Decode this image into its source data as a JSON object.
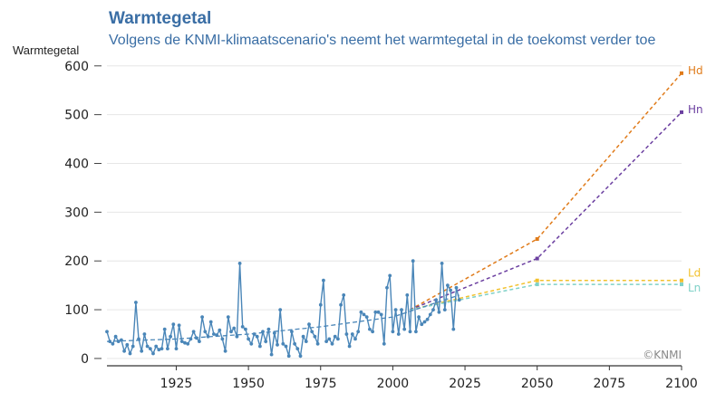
{
  "title": "Warmtegetal",
  "subtitle": "Volgens de KNMI-klimaatscenario's neemt het warmtegetal in de toekomst verder toe",
  "credit": "©KNMI",
  "chart_data": {
    "type": "line",
    "ylabel": "Warmtegetal",
    "xlim": [
      1901,
      2100
    ],
    "ylim": [
      -15,
      620
    ],
    "x_ticks": [
      1925,
      1950,
      1975,
      2000,
      2025,
      2050,
      2075,
      2100
    ],
    "y_ticks": [
      0,
      100,
      200,
      300,
      400,
      500,
      600
    ],
    "grid": "horizontal",
    "observations": {
      "color": "#4a86b8",
      "x": [
        1901,
        1902,
        1903,
        1904,
        1905,
        1906,
        1907,
        1908,
        1909,
        1910,
        1911,
        1912,
        1913,
        1914,
        1915,
        1916,
        1917,
        1918,
        1919,
        1920,
        1921,
        1922,
        1923,
        1924,
        1925,
        1926,
        1927,
        1928,
        1929,
        1930,
        1931,
        1932,
        1933,
        1934,
        1935,
        1936,
        1937,
        1938,
        1939,
        1940,
        1941,
        1942,
        1943,
        1944,
        1945,
        1946,
        1947,
        1948,
        1949,
        1950,
        1951,
        1952,
        1953,
        1954,
        1955,
        1956,
        1957,
        1958,
        1959,
        1960,
        1961,
        1962,
        1963,
        1964,
        1965,
        1966,
        1967,
        1968,
        1969,
        1970,
        1971,
        1972,
        1973,
        1974,
        1975,
        1976,
        1977,
        1978,
        1979,
        1980,
        1981,
        1982,
        1983,
        1984,
        1985,
        1986,
        1987,
        1988,
        1989,
        1990,
        1991,
        1992,
        1993,
        1994,
        1995,
        1996,
        1997,
        1998,
        1999,
        2000,
        2001,
        2002,
        2003,
        2004,
        2005,
        2006,
        2007,
        2008,
        2009,
        2010,
        2011,
        2012,
        2013,
        2014,
        2015,
        2016,
        2017,
        2018,
        2019,
        2020,
        2021,
        2022,
        2023
      ],
      "y": [
        55,
        35,
        30,
        45,
        35,
        38,
        15,
        28,
        10,
        25,
        115,
        40,
        15,
        50,
        25,
        20,
        10,
        25,
        18,
        20,
        60,
        20,
        45,
        70,
        20,
        68,
        35,
        32,
        30,
        40,
        55,
        42,
        35,
        85,
        55,
        45,
        75,
        50,
        48,
        58,
        40,
        15,
        85,
        55,
        62,
        45,
        195,
        65,
        60,
        40,
        30,
        50,
        45,
        25,
        55,
        35,
        60,
        8,
        52,
        28,
        100,
        30,
        25,
        5,
        55,
        30,
        20,
        5,
        45,
        35,
        70,
        55,
        45,
        30,
        110,
        160,
        35,
        40,
        30,
        45,
        40,
        110,
        130,
        50,
        25,
        50,
        40,
        55,
        95,
        90,
        85,
        60,
        55,
        95,
        95,
        90,
        30,
        145,
        170,
        55,
        100,
        50,
        100,
        60,
        130,
        55,
        200,
        55,
        85,
        70,
        75,
        80,
        90,
        100,
        120,
        95,
        195,
        100,
        150,
        140,
        60,
        145,
        120
      ]
    },
    "trend": {
      "color": "#4a86b8",
      "style": "dashed",
      "x": [
        1901,
        1925,
        1950,
        1975,
        2000,
        2023
      ],
      "y": [
        35,
        40,
        50,
        65,
        85,
        130
      ]
    },
    "series": [
      {
        "name": "Hd",
        "color": "#e07b1a",
        "x": [
          2006,
          2050,
          2100
        ],
        "y": [
          100,
          245,
          585
        ]
      },
      {
        "name": "Hn",
        "color": "#6b3fa0",
        "x": [
          2006,
          2050,
          2100
        ],
        "y": [
          100,
          205,
          505
        ]
      },
      {
        "name": "Ld",
        "color": "#f2c12e",
        "x": [
          2006,
          2050,
          2100
        ],
        "y": [
          100,
          160,
          160
        ]
      },
      {
        "name": "Ln",
        "color": "#7fd1c8",
        "x": [
          2006,
          2050,
          2100
        ],
        "y": [
          100,
          152,
          152
        ]
      }
    ]
  }
}
